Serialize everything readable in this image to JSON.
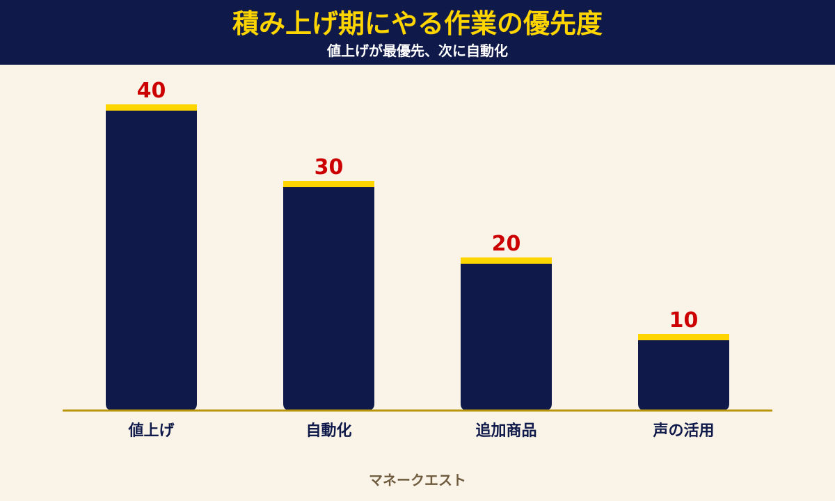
{
  "header": {
    "title": "積み上げ期にやる作業の優先度",
    "subtitle": "値上げが最優先、次に自動化"
  },
  "watermark": "マネークエスト",
  "colors": {
    "background": "#FAF3E8",
    "header": "#0F1A4A",
    "bar": "#0F1A4A",
    "bar_cap": "#FFD500",
    "value_label": "#CC0000",
    "baseline": "#B8960C",
    "category_label": "#0F1A4A"
  },
  "chart_data": {
    "type": "bar",
    "categories": [
      "値上げ",
      "自動化",
      "追加商品",
      "声の活用"
    ],
    "values": [
      40,
      30,
      20,
      10
    ],
    "title": "積み上げ期にやる作業の優先度",
    "subtitle": "値上げが最優先、次に自動化",
    "xlabel": "",
    "ylabel": "",
    "ylim": [
      0,
      40
    ],
    "grid": false,
    "legend": "none"
  }
}
